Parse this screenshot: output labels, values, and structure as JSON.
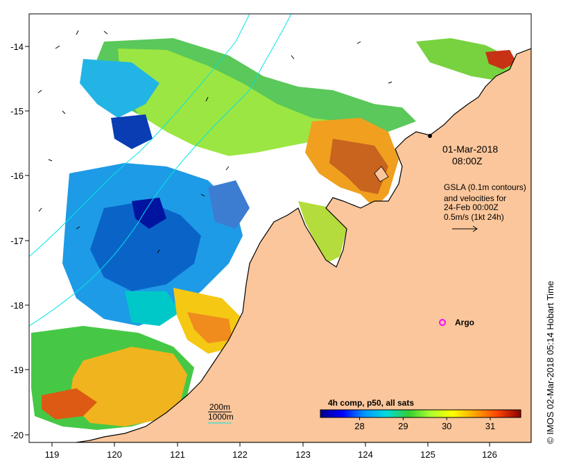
{
  "map": {
    "lon_ticks": [
      "119",
      "120",
      "121",
      "122",
      "123",
      "124",
      "125",
      "126"
    ],
    "lat_ticks": [
      "-14",
      "-15",
      "-16",
      "-17",
      "-18",
      "-19",
      "-20"
    ],
    "timestamp_line1": "01-Mar-2018",
    "timestamp_line2": "08:00Z",
    "gsla_lines": [
      "GSLA (0.1m contours)",
      "and velocities for",
      "24-Feb 00:00Z",
      "0.5m/s (1kt 24h)"
    ],
    "argo_label": "Argo",
    "depth_legend": [
      "200m",
      "1000m"
    ],
    "colorbar": {
      "title": "4h comp, p50, all sats",
      "ticks": [
        "28",
        "29",
        "30",
        "31"
      ],
      "tick_values": [
        28,
        29,
        30,
        31
      ],
      "range": [
        27.1,
        31.7
      ]
    },
    "side_credit": "© IMOS 02-Mar-2018 05:14 Hobart Time",
    "colors": {
      "land": "#fbc69b",
      "coast": "#000000",
      "isobath": "#00e5e5",
      "argo": "#ff00ff",
      "colormap": [
        "#00008b",
        "#0000ff",
        "#0096ff",
        "#00dcdc",
        "#32cd32",
        "#adff2f",
        "#ffff00",
        "#ffa500",
        "#ff4500",
        "#8b0000"
      ]
    }
  }
}
